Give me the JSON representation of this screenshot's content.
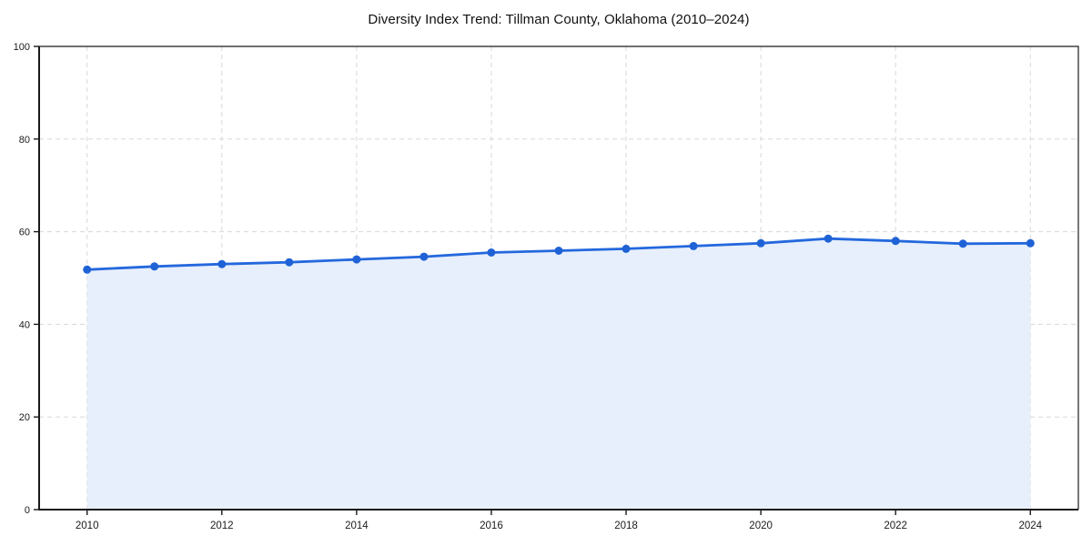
{
  "page": {
    "title": "Diversity Index Trend: Tillman County, Oklahoma (2010–2024)"
  },
  "chart_data": {
    "type": "area",
    "title": "Diversity Index Trend: Tillman County, Oklahoma (2010–2024)",
    "series_name": "Diversity Index",
    "x": [
      2010,
      2011,
      2012,
      2013,
      2014,
      2015,
      2016,
      2017,
      2018,
      2019,
      2020,
      2021,
      2022,
      2023,
      2024
    ],
    "values": [
      51.8,
      52.5,
      53.0,
      53.4,
      54.0,
      54.6,
      55.5,
      55.9,
      56.3,
      56.9,
      57.5,
      58.5,
      58.0,
      57.4,
      57.5
    ],
    "xlabel": "",
    "ylabel": "",
    "xlim": [
      2009.3,
      2024.7
    ],
    "ylim": [
      0,
      100
    ],
    "xticks": [
      2010,
      2012,
      2014,
      2016,
      2018,
      2020,
      2022,
      2024
    ],
    "yticks": [
      0,
      20,
      40,
      60,
      80,
      100
    ],
    "grid": "dashed",
    "legend": "none",
    "colors": {
      "line": "#2468dd",
      "marker": "#1f62d6",
      "fill": "#e7effc",
      "grid": "#d8d8d8",
      "spine": "#1a1a1a",
      "tick_label": "#1b1b1b",
      "background": "#ffffff"
    }
  }
}
